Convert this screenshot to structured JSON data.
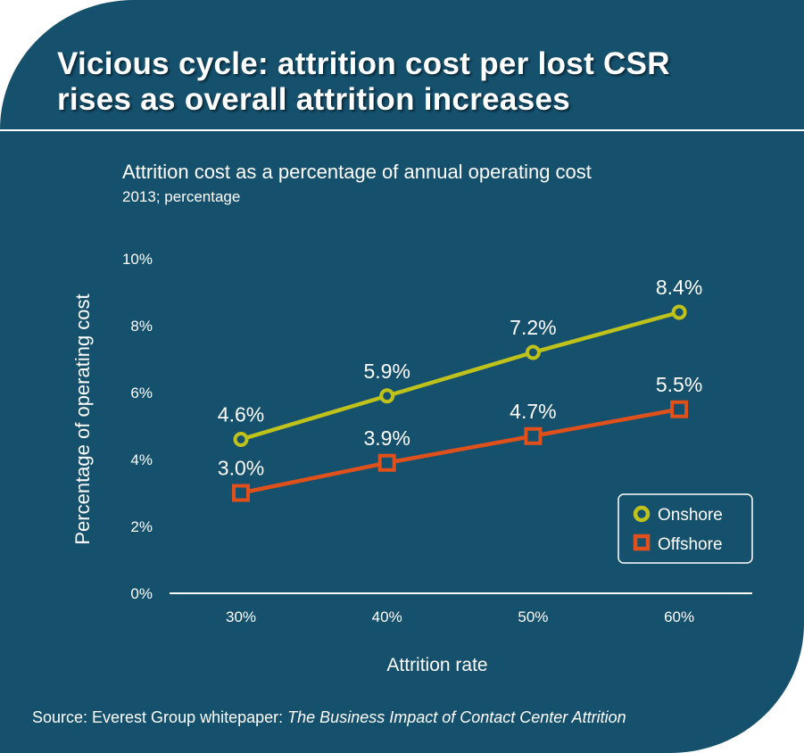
{
  "title": "Vicious cycle: attrition cost per lost CSR rises as overall attrition increases",
  "title_lines": [
    "Vicious cycle: attrition cost per lost CSR",
    "rises as overall attrition increases"
  ],
  "source": {
    "prefix": "Source: Everest Group whitepaper: ",
    "publication": "The Business Impact of Contact Center Attrition"
  },
  "colors": {
    "background": "#15506d",
    "onshore": "#bfc21a",
    "offshore": "#e0501a",
    "text": "#ffffff"
  },
  "chart_data": {
    "type": "line",
    "title": "Attrition cost as a percentage of annual operating cost",
    "subtitle": "2013; percentage",
    "xlabel": "Attrition rate",
    "ylabel": "Percentage of operating cost",
    "categories": [
      "30%",
      "40%",
      "50%",
      "60%"
    ],
    "ylim": [
      0,
      10
    ],
    "yticks": [
      "0%",
      "2%",
      "4%",
      "6%",
      "8%",
      "10%"
    ],
    "grid": false,
    "legend": "bottom-right",
    "series": [
      {
        "name": "Onshore",
        "marker": "circle",
        "values": [
          4.6,
          5.9,
          7.2,
          8.4
        ],
        "labels": [
          "4.6%",
          "5.9%",
          "7.2%",
          "8.4%"
        ]
      },
      {
        "name": "Offshore",
        "marker": "square",
        "values": [
          3.0,
          3.9,
          4.7,
          5.5
        ],
        "labels": [
          "3.0%",
          "3.9%",
          "4.7%",
          "5.5%"
        ]
      }
    ]
  }
}
